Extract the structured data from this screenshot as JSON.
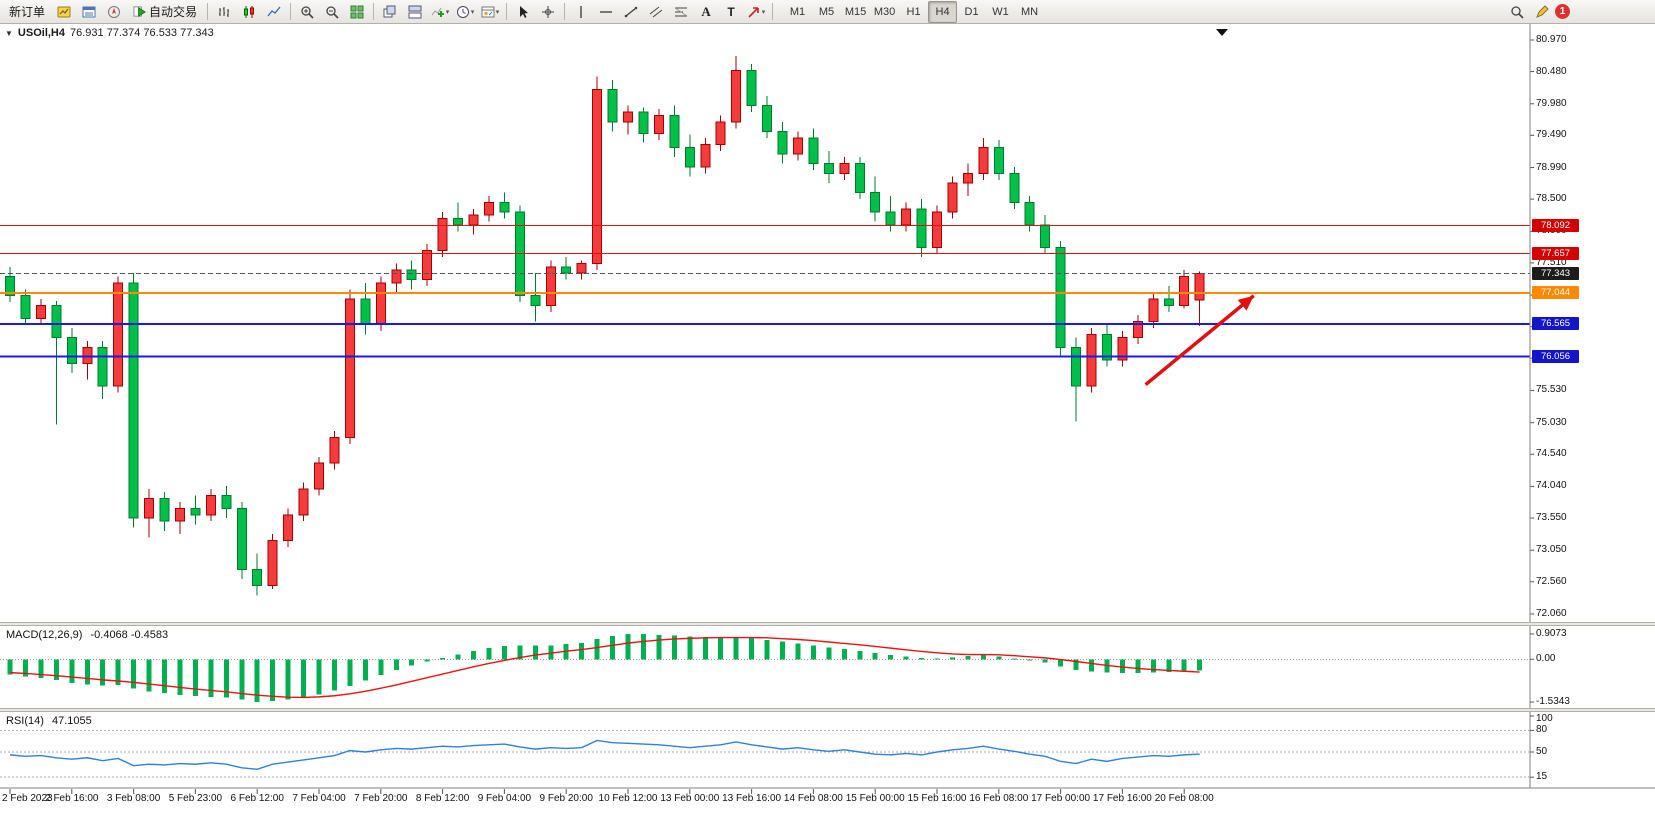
{
  "toolbar": {
    "new_order_label": "新订单",
    "autotrading_label": "自动交易",
    "timeframes": [
      "M1",
      "M5",
      "M15",
      "M30",
      "H1",
      "H4",
      "D1",
      "W1",
      "MN"
    ],
    "active_timeframe": "H4",
    "notification_count": "1"
  },
  "chart_header": {
    "symbol_timeframe": "USOil,H4",
    "ohlc": "76.931 77.374 76.533 77.343"
  },
  "chart_data": [
    {
      "type": "candlestick",
      "symbol": "USOil",
      "timeframe": "H4",
      "current_ohlc": {
        "open": 76.931,
        "high": 77.374,
        "low": 76.533,
        "close": 77.343
      },
      "ylim": [
        71.9,
        81.1
      ],
      "up_color": "#f53b3b",
      "up_border": "#a00000",
      "down_color": "#00c04a",
      "down_border": "#007a2f",
      "price_axis_labels": [
        80.97,
        80.48,
        79.98,
        79.49,
        78.99,
        78.5,
        78.0,
        77.51,
        77.01,
        76.52,
        76.03,
        75.53,
        75.03,
        74.54,
        74.04,
        73.55,
        73.05,
        72.56,
        72.06
      ],
      "time_labels": [
        "2 Feb 2023",
        "2 Feb 16:00",
        "3 Feb 08:00",
        "5 Feb 23:00",
        "6 Feb 12:00",
        "7 Feb 04:00",
        "7 Feb 20:00",
        "8 Feb 12:00",
        "9 Feb 04:00",
        "9 Feb 20:00",
        "10 Feb 12:00",
        "13 Feb 00:00",
        "13 Feb 16:00",
        "14 Feb 08:00",
        "15 Feb 00:00",
        "15 Feb 16:00",
        "16 Feb 08:00",
        "17 Feb 00:00",
        "17 Feb 16:00",
        "20 Feb 08:00"
      ],
      "candles_per_label": 4,
      "candles": [
        [
          77.3,
          77.45,
          76.9,
          77.0
        ],
        [
          77.0,
          77.1,
          76.55,
          76.65
        ],
        [
          76.65,
          76.95,
          76.55,
          76.85
        ],
        [
          76.85,
          76.92,
          75.0,
          76.35
        ],
        [
          76.35,
          76.5,
          75.8,
          75.95
        ],
        [
          75.95,
          76.3,
          75.7,
          76.2
        ],
        [
          76.2,
          76.3,
          75.4,
          75.6
        ],
        [
          75.6,
          77.3,
          75.5,
          77.2
        ],
        [
          77.2,
          77.35,
          73.4,
          73.55
        ],
        [
          73.55,
          74.0,
          73.25,
          73.85
        ],
        [
          73.85,
          73.95,
          73.35,
          73.5
        ],
        [
          73.5,
          73.8,
          73.3,
          73.7
        ],
        [
          73.7,
          73.9,
          73.45,
          73.6
        ],
        [
          73.6,
          74.0,
          73.5,
          73.9
        ],
        [
          73.9,
          74.05,
          73.55,
          73.7
        ],
        [
          73.7,
          73.8,
          72.6,
          72.75
        ],
        [
          72.75,
          73.0,
          72.35,
          72.5
        ],
        [
          72.5,
          73.3,
          72.45,
          73.2
        ],
        [
          73.2,
          73.7,
          73.1,
          73.6
        ],
        [
          73.6,
          74.1,
          73.5,
          74.0
        ],
        [
          74.0,
          74.5,
          73.9,
          74.4
        ],
        [
          74.4,
          74.9,
          74.3,
          74.8
        ],
        [
          74.8,
          77.1,
          74.7,
          76.95
        ],
        [
          76.95,
          77.2,
          76.4,
          76.55
        ],
        [
          76.55,
          77.3,
          76.45,
          77.2
        ],
        [
          77.2,
          77.5,
          77.05,
          77.4
        ],
        [
          77.4,
          77.55,
          77.1,
          77.25
        ],
        [
          77.25,
          77.8,
          77.15,
          77.7
        ],
        [
          77.7,
          78.3,
          77.6,
          78.2
        ],
        [
          78.2,
          78.45,
          78.0,
          78.1
        ],
        [
          78.1,
          78.35,
          77.95,
          78.25
        ],
        [
          78.25,
          78.55,
          78.15,
          78.45
        ],
        [
          78.45,
          78.6,
          78.2,
          78.3
        ],
        [
          78.3,
          78.4,
          76.9,
          77.0
        ],
        [
          77.0,
          77.35,
          76.6,
          76.85
        ],
        [
          76.85,
          77.55,
          76.75,
          77.45
        ],
        [
          77.45,
          77.6,
          77.25,
          77.35
        ],
        [
          77.35,
          77.55,
          77.25,
          77.5
        ],
        [
          77.5,
          80.4,
          77.4,
          80.2
        ],
        [
          80.2,
          80.35,
          79.55,
          79.7
        ],
        [
          79.7,
          79.95,
          79.5,
          79.85
        ],
        [
          79.85,
          79.92,
          79.38,
          79.52
        ],
        [
          79.52,
          79.9,
          79.42,
          79.8
        ],
        [
          79.8,
          79.95,
          79.15,
          79.3
        ],
        [
          79.3,
          79.5,
          78.85,
          79.0
        ],
        [
          79.0,
          79.45,
          78.9,
          79.35
        ],
        [
          79.35,
          79.8,
          79.25,
          79.7
        ],
        [
          79.7,
          80.72,
          79.6,
          80.5
        ],
        [
          80.5,
          80.6,
          79.85,
          79.95
        ],
        [
          79.95,
          80.1,
          79.45,
          79.55
        ],
        [
          79.55,
          79.7,
          79.05,
          79.2
        ],
        [
          79.2,
          79.55,
          79.1,
          79.45
        ],
        [
          79.45,
          79.6,
          78.95,
          79.05
        ],
        [
          79.05,
          79.25,
          78.75,
          78.9
        ],
        [
          78.9,
          79.15,
          78.8,
          79.05
        ],
        [
          79.05,
          79.15,
          78.5,
          78.6
        ],
        [
          78.6,
          78.85,
          78.15,
          78.3
        ],
        [
          78.3,
          78.55,
          78.0,
          78.1
        ],
        [
          78.1,
          78.45,
          78.0,
          78.35
        ],
        [
          78.35,
          78.5,
          77.6,
          77.75
        ],
        [
          77.75,
          78.4,
          77.65,
          78.3
        ],
        [
          78.3,
          78.85,
          78.2,
          78.75
        ],
        [
          78.75,
          79.05,
          78.55,
          78.9
        ],
        [
          78.9,
          79.45,
          78.8,
          79.3
        ],
        [
          79.3,
          79.42,
          78.8,
          78.9
        ],
        [
          78.9,
          79.0,
          78.35,
          78.45
        ],
        [
          78.45,
          78.55,
          78.0,
          78.1
        ],
        [
          78.1,
          78.25,
          77.65,
          77.75
        ],
        [
          77.75,
          77.85,
          76.05,
          76.2
        ],
        [
          76.2,
          76.35,
          75.05,
          75.6
        ],
        [
          75.6,
          76.5,
          75.5,
          76.4
        ],
        [
          76.4,
          76.55,
          75.9,
          76.0
        ],
        [
          76.0,
          76.45,
          75.9,
          76.35
        ],
        [
          76.35,
          76.7,
          76.25,
          76.6
        ],
        [
          76.6,
          77.05,
          76.5,
          76.95
        ],
        [
          76.95,
          77.15,
          76.75,
          76.85
        ],
        [
          76.85,
          77.4,
          76.8,
          77.3
        ],
        [
          76.931,
          77.374,
          76.533,
          77.343
        ]
      ],
      "horizontal_lines": [
        {
          "price": 78.092,
          "color": "#dd1111",
          "width": 1,
          "label_bg": "#d40000"
        },
        {
          "price": 77.657,
          "color": "#dd1111",
          "width": 1,
          "label_bg": "#d40000"
        },
        {
          "price": 77.044,
          "color": "#ff8a00",
          "width": 2,
          "label_bg": "#ff8a00"
        },
        {
          "price": 76.565,
          "color": "#1a1aee",
          "width": 2,
          "label_bg": "#1414cc"
        },
        {
          "price": 76.056,
          "color": "#1a1aee",
          "width": 2,
          "label_bg": "#1414cc"
        }
      ],
      "current_price": {
        "value": 77.343,
        "label_bg": "#1c1c1c"
      },
      "annotation_arrow": {
        "color": "#e01010",
        "from": {
          "index": 73.5,
          "price": 75.62
        },
        "to": {
          "index": 80.5,
          "price": 77.0
        }
      }
    },
    {
      "type": "bar",
      "name": "MACD",
      "label": "MACD(12,26,9)",
      "values_text": "-0.4068 -0.4583",
      "axis_labels": [
        "0.9073",
        "0.00",
        "-1.5343"
      ],
      "axis_values": [
        0.9073,
        0,
        -1.5343
      ],
      "ylim": [
        -1.5343,
        0.9073
      ],
      "histogram_color": "#00b050",
      "signal_color": "#ee1111",
      "histogram": [
        -0.55,
        -0.62,
        -0.68,
        -0.75,
        -0.85,
        -0.9,
        -0.95,
        -0.92,
        -1.05,
        -1.15,
        -1.22,
        -1.28,
        -1.32,
        -1.35,
        -1.38,
        -1.45,
        -1.53,
        -1.5,
        -1.44,
        -1.36,
        -1.26,
        -1.13,
        -0.96,
        -0.76,
        -0.56,
        -0.38,
        -0.22,
        -0.08,
        0.05,
        0.18,
        0.3,
        0.4,
        0.47,
        0.5,
        0.49,
        0.5,
        0.54,
        0.58,
        0.72,
        0.84,
        0.9073,
        0.9,
        0.88,
        0.85,
        0.82,
        0.8,
        0.78,
        0.8,
        0.76,
        0.7,
        0.63,
        0.57,
        0.5,
        0.43,
        0.37,
        0.3,
        0.22,
        0.15,
        0.1,
        0.04,
        0.02,
        0.06,
        0.11,
        0.16,
        0.1,
        0.02,
        -0.05,
        -0.12,
        -0.26,
        -0.38,
        -0.44,
        -0.48,
        -0.5,
        -0.49,
        -0.47,
        -0.45,
        -0.43,
        -0.4068
      ],
      "signal": [
        -0.48,
        -0.51,
        -0.55,
        -0.59,
        -0.64,
        -0.69,
        -0.74,
        -0.78,
        -0.83,
        -0.89,
        -0.95,
        -1.01,
        -1.07,
        -1.12,
        -1.17,
        -1.23,
        -1.29,
        -1.33,
        -1.36,
        -1.37,
        -1.35,
        -1.31,
        -1.24,
        -1.15,
        -1.04,
        -0.92,
        -0.79,
        -0.66,
        -0.53,
        -0.4,
        -0.27,
        -0.15,
        -0.04,
        0.06,
        0.15,
        0.22,
        0.29,
        0.35,
        0.42,
        0.5,
        0.58,
        0.64,
        0.69,
        0.73,
        0.75,
        0.77,
        0.78,
        0.78,
        0.78,
        0.77,
        0.74,
        0.71,
        0.67,
        0.62,
        0.57,
        0.52,
        0.46,
        0.4,
        0.34,
        0.28,
        0.23,
        0.19,
        0.17,
        0.17,
        0.16,
        0.13,
        0.09,
        0.05,
        -0.01,
        -0.08,
        -0.15,
        -0.22,
        -0.28,
        -0.33,
        -0.37,
        -0.4,
        -0.43,
        -0.4583
      ]
    },
    {
      "type": "line",
      "name": "RSI",
      "label": "RSI(14)",
      "values_text": "47.1055",
      "axis_labels": [
        "100",
        "80",
        "50",
        "15"
      ],
      "axis_values": [
        100,
        80,
        50,
        15
      ],
      "levels": [
        80,
        50,
        15
      ],
      "ylim": [
        0,
        100
      ],
      "line_color": "#2f7fe0",
      "values": [
        46,
        44,
        45,
        42,
        40,
        42,
        38,
        41,
        31,
        33,
        32,
        34,
        33,
        35,
        33,
        28,
        26,
        33,
        36,
        39,
        42,
        45,
        52,
        50,
        53,
        55,
        54,
        56,
        58,
        57,
        59,
        60,
        61,
        57,
        54,
        56,
        55,
        56,
        66,
        63,
        62,
        61,
        60,
        58,
        56,
        58,
        60,
        64,
        60,
        57,
        54,
        56,
        53,
        51,
        53,
        50,
        47,
        46,
        48,
        46,
        50,
        53,
        55,
        58,
        54,
        51,
        47,
        44,
        37,
        34,
        40,
        37,
        41,
        43,
        45,
        44,
        46,
        47.1
      ]
    }
  ]
}
